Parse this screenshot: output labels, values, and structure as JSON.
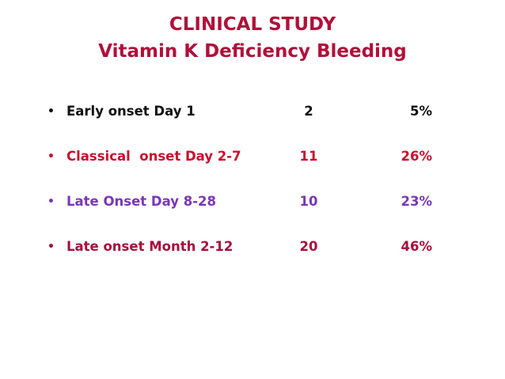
{
  "title": {
    "line1": "CLINICAL STUDY",
    "line2": "Vitamin K Deficiency Bleeding"
  },
  "rows": [
    {
      "bullet": "•",
      "label": "Early onset Day 1",
      "count": "2",
      "percent": "5%",
      "color": "#111111"
    },
    {
      "bullet": "•",
      "label": "Classical  onset Day 2-7",
      "count": "11",
      "percent": "26%",
      "color": "#c8102e"
    },
    {
      "bullet": "•",
      "label": "Late Onset Day 8-28",
      "count": "10",
      "percent": "23%",
      "color": "#7a36b8"
    },
    {
      "bullet": "•",
      "label": "Late onset Month 2-12",
      "count": "20",
      "percent": "46%",
      "color": "#a80c3c"
    }
  ]
}
